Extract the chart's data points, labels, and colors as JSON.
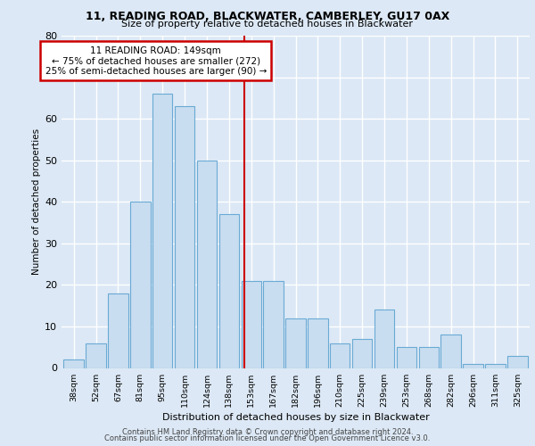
{
  "title1": "11, READING ROAD, BLACKWATER, CAMBERLEY, GU17 0AX",
  "title2": "Size of property relative to detached houses in Blackwater",
  "xlabel": "Distribution of detached houses by size in Blackwater",
  "ylabel": "Number of detached properties",
  "categories": [
    "38sqm",
    "52sqm",
    "67sqm",
    "81sqm",
    "95sqm",
    "110sqm",
    "124sqm",
    "138sqm",
    "153sqm",
    "167sqm",
    "182sqm",
    "196sqm",
    "210sqm",
    "225sqm",
    "239sqm",
    "253sqm",
    "268sqm",
    "282sqm",
    "296sqm",
    "311sqm",
    "325sqm"
  ],
  "bar_values": [
    2,
    6,
    18,
    40,
    66,
    63,
    50,
    37,
    21,
    21,
    12,
    12,
    6,
    7,
    14,
    5,
    5,
    8,
    1,
    1,
    3
  ],
  "bar_color": "#c9ddf0",
  "bar_edge_color": "#6aaad4",
  "property_line_color": "#cc0000",
  "property_line_x": 7.7,
  "annotation_text": "11 READING ROAD: 149sqm\n← 75% of detached houses are smaller (272)\n25% of semi-detached houses are larger (90) →",
  "annotation_box_facecolor": "#ffffff",
  "annotation_box_edgecolor": "#cc0000",
  "ylim": [
    0,
    80
  ],
  "yticks": [
    0,
    10,
    20,
    30,
    40,
    50,
    60,
    70,
    80
  ],
  "fig_facecolor": "#dce8f5",
  "plot_facecolor": "#dce8f5",
  "grid_color": "#ffffff",
  "footer1": "Contains HM Land Registry data © Crown copyright and database right 2024.",
  "footer2": "Contains public sector information licensed under the Open Government Licence v3.0."
}
